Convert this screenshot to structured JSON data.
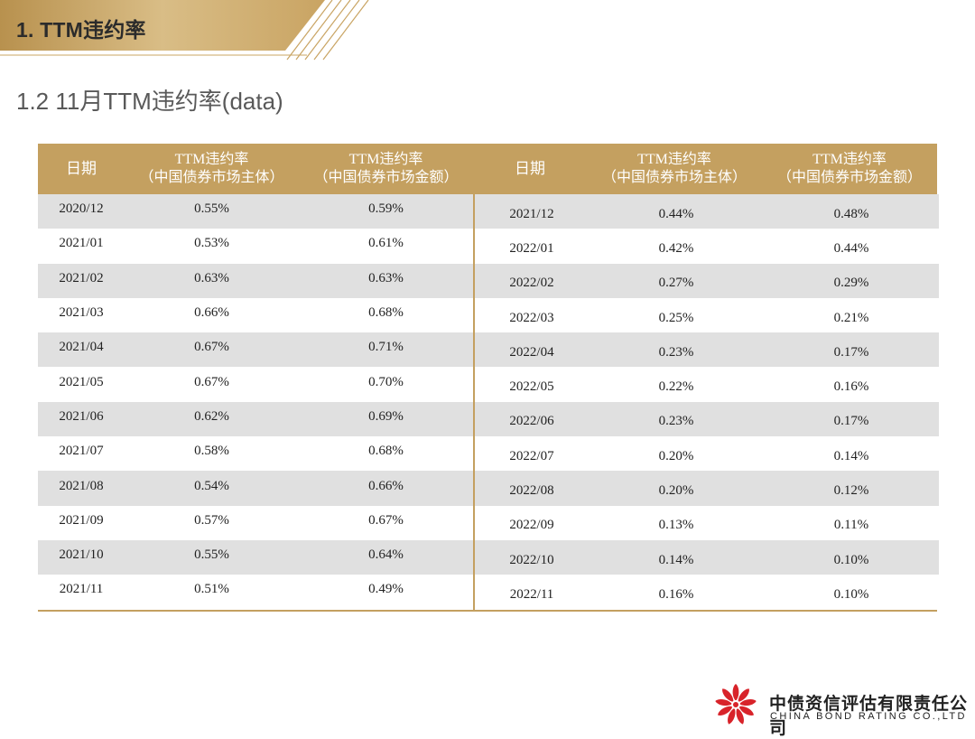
{
  "banner": {
    "title": "1. TTM违约率"
  },
  "subtitle": "1.2 11月TTM违约率(data)",
  "table": {
    "headers": {
      "date": "日期",
      "col_entity_line1": "TTM违约率",
      "col_entity_line2": "（中国债券市场主体）",
      "col_amount_line1": "TTM违约率",
      "col_amount_line2": "（中国债券市场金额）"
    },
    "left_rows": [
      {
        "date": "2020/12",
        "entity": "0.55%",
        "amount": "0.59%"
      },
      {
        "date": "2021/01",
        "entity": "0.53%",
        "amount": "0.61%"
      },
      {
        "date": "2021/02",
        "entity": "0.63%",
        "amount": "0.63%"
      },
      {
        "date": "2021/03",
        "entity": "0.66%",
        "amount": "0.68%"
      },
      {
        "date": "2021/04",
        "entity": "0.67%",
        "amount": "0.71%"
      },
      {
        "date": "2021/05",
        "entity": "0.67%",
        "amount": "0.70%"
      },
      {
        "date": "2021/06",
        "entity": "0.62%",
        "amount": "0.69%"
      },
      {
        "date": "2021/07",
        "entity": "0.58%",
        "amount": "0.68%"
      },
      {
        "date": "2021/08",
        "entity": "0.54%",
        "amount": "0.66%"
      },
      {
        "date": "2021/09",
        "entity": "0.57%",
        "amount": "0.67%"
      },
      {
        "date": "2021/10",
        "entity": "0.55%",
        "amount": "0.64%"
      },
      {
        "date": "2021/11",
        "entity": "0.51%",
        "amount": "0.49%"
      }
    ],
    "right_rows": [
      {
        "date": "2021/12",
        "entity": "0.44%",
        "amount": "0.48%"
      },
      {
        "date": "2022/01",
        "entity": "0.42%",
        "amount": "0.44%"
      },
      {
        "date": "2022/02",
        "entity": "0.27%",
        "amount": "0.29%"
      },
      {
        "date": "2022/03",
        "entity": "0.25%",
        "amount": "0.21%"
      },
      {
        "date": "2022/04",
        "entity": "0.23%",
        "amount": "0.17%"
      },
      {
        "date": "2022/05",
        "entity": "0.22%",
        "amount": "0.16%"
      },
      {
        "date": "2022/06",
        "entity": "0.23%",
        "amount": "0.17%"
      },
      {
        "date": "2022/07",
        "entity": "0.20%",
        "amount": "0.14%"
      },
      {
        "date": "2022/08",
        "entity": "0.20%",
        "amount": "0.12%"
      },
      {
        "date": "2022/09",
        "entity": "0.13%",
        "amount": "0.11%"
      },
      {
        "date": "2022/10",
        "entity": "0.14%",
        "amount": "0.10%"
      },
      {
        "date": "2022/11",
        "entity": "0.16%",
        "amount": "0.10%"
      }
    ]
  },
  "logo": {
    "name_cn": "中债资信评估有限责任公司",
    "name_en": "CHINA BOND RATING CO.,LTD",
    "icon": "red-flower-logo-icon"
  },
  "colors": {
    "header_gold": "#c4a060",
    "stripe_gray": "#e0e0e0",
    "banner_gold": "#c9a463",
    "logo_red": "#d8232a"
  }
}
